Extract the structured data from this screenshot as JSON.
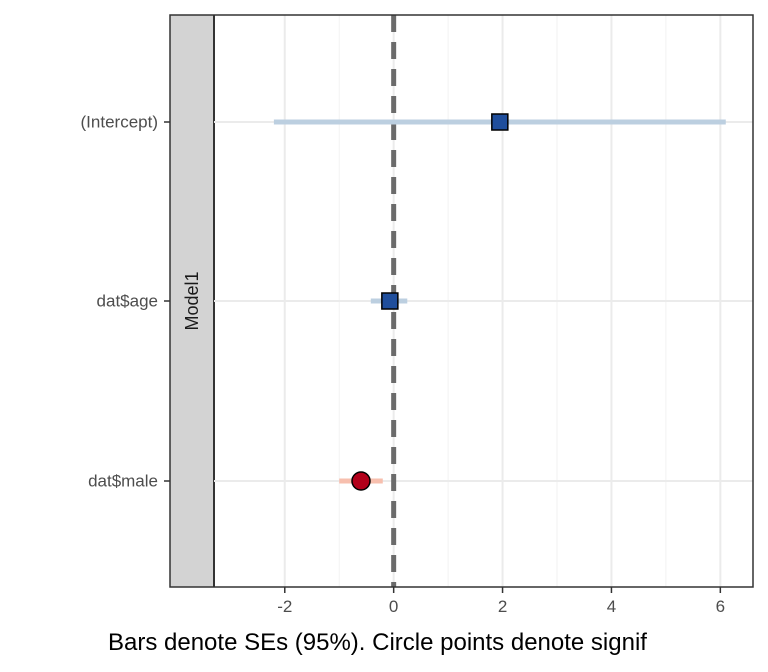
{
  "chart_data": {
    "type": "scatter",
    "title": "",
    "xlabel": "Bars denote SEs (95%). Circle points denote signif",
    "ylabel": "",
    "panel_label": "Model1",
    "xlim": [
      -3.3,
      6.6
    ],
    "x_ticks": [
      -2,
      0,
      2,
      4,
      6
    ],
    "x_tick_labels": [
      "-2",
      "0",
      "2",
      "4",
      "6"
    ],
    "reference_line_x": 0,
    "grid": true,
    "legend": "none",
    "terms": [
      {
        "label": "(Intercept)",
        "estimate": 1.95,
        "ci_low": -2.2,
        "ci_high": 6.1,
        "significant": false
      },
      {
        "label": "dat$age",
        "estimate": -0.07,
        "ci_low": -0.42,
        "ci_high": 0.25,
        "significant": false
      },
      {
        "label": "dat$male",
        "estimate": -0.6,
        "ci_low": -1.0,
        "ci_high": -0.2,
        "significant": true
      }
    ],
    "colors": {
      "nonsignificant_point": "#1f4e9c",
      "nonsignificant_bar": "#bccfe0",
      "significant_point": "#b2001a",
      "significant_bar": "#f7bfae",
      "reference_line": "#6b6b6b",
      "strip_fill": "#d3d3d3",
      "grid": "#ebebeb"
    }
  }
}
